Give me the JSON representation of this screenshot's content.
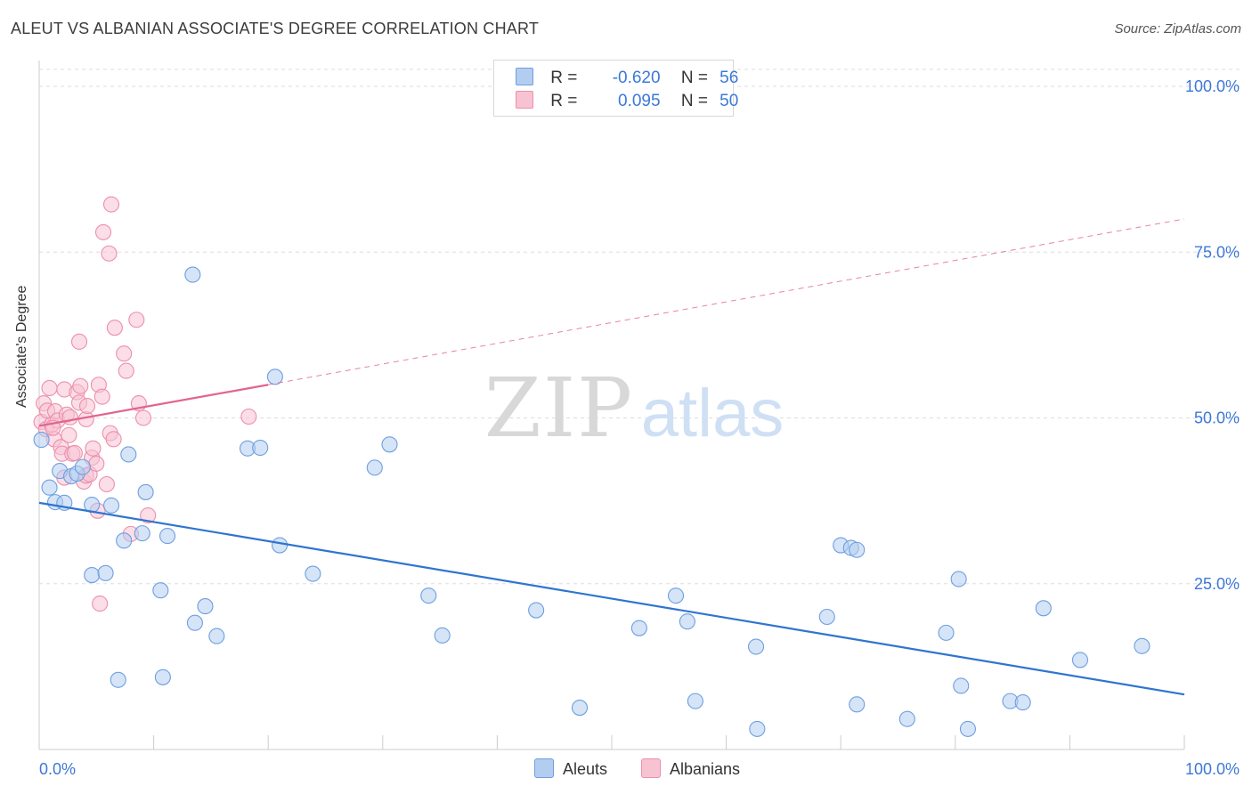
{
  "title": "ALEUT VS ALBANIAN ASSOCIATE'S DEGREE CORRELATION CHART",
  "source": "Source: ZipAtlas.com",
  "watermark": {
    "zip": "ZIP",
    "atlas": "atlas"
  },
  "legend": {
    "rows": [
      {
        "r_label": "R =",
        "r_value": "-0.620",
        "n_label": "N =",
        "n_value": "56"
      },
      {
        "r_label": "R =",
        "r_value": "0.095",
        "n_label": "N =",
        "n_value": "50"
      }
    ]
  },
  "bottom_legend": {
    "aleuts": "Aleuts",
    "albanians": "Albanians"
  },
  "colors": {
    "aleut_fill": "#b3cdf0",
    "aleut_stroke": "#6e9fe0",
    "aleut_line": "#2f74d0",
    "albanian_fill": "#f7c3d3",
    "albanian_stroke": "#ec8fac",
    "albanian_line": "#e2648d",
    "tick_label": "#3c78d8",
    "grid": "#dddddd"
  },
  "chart_data": {
    "type": "scatter",
    "title": "ALEUT VS ALBANIAN ASSOCIATE'S DEGREE CORRELATION CHART",
    "xlabel": "",
    "ylabel": "Associate's Degree",
    "xlim": [
      0,
      100
    ],
    "ylim": [
      0,
      100
    ],
    "x_tick_labels": [
      "0.0%",
      "100.0%"
    ],
    "y_ticks": [
      25,
      50,
      75,
      100
    ],
    "y_tick_labels": [
      "25.0%",
      "50.0%",
      "75.0%",
      "100.0%"
    ],
    "series": [
      {
        "name": "Aleuts",
        "R": -0.62,
        "N": 56,
        "trend": {
          "x0": 0,
          "y0": 37.2,
          "x1": 100,
          "y1": 8.3
        },
        "points": [
          [
            0.2,
            46.7
          ],
          [
            0.9,
            39.5
          ],
          [
            1.4,
            37.3
          ],
          [
            1.8,
            42.0
          ],
          [
            2.2,
            37.2
          ],
          [
            2.8,
            41.2
          ],
          [
            3.3,
            41.6
          ],
          [
            3.8,
            42.6
          ],
          [
            4.6,
            36.9
          ],
          [
            4.6,
            26.3
          ],
          [
            5.8,
            26.6
          ],
          [
            6.3,
            36.8
          ],
          [
            6.9,
            10.5
          ],
          [
            7.4,
            31.5
          ],
          [
            7.8,
            44.5
          ],
          [
            9.0,
            32.6
          ],
          [
            9.3,
            38.8
          ],
          [
            10.6,
            24.0
          ],
          [
            10.8,
            10.9
          ],
          [
            11.2,
            32.2
          ],
          [
            13.4,
            71.6
          ],
          [
            13.6,
            19.1
          ],
          [
            14.5,
            21.6
          ],
          [
            15.5,
            17.1
          ],
          [
            18.2,
            45.4
          ],
          [
            19.3,
            45.5
          ],
          [
            20.6,
            56.2
          ],
          [
            21.0,
            30.8
          ],
          [
            23.9,
            26.5
          ],
          [
            29.3,
            42.5
          ],
          [
            30.6,
            46.0
          ],
          [
            34.0,
            23.2
          ],
          [
            35.2,
            17.2
          ],
          [
            43.4,
            21.0
          ],
          [
            47.2,
            6.3
          ],
          [
            52.4,
            18.3
          ],
          [
            55.6,
            23.2
          ],
          [
            56.6,
            19.3
          ],
          [
            57.3,
            7.3
          ],
          [
            62.6,
            15.5
          ],
          [
            62.7,
            3.1
          ],
          [
            68.8,
            20.0
          ],
          [
            70.0,
            30.8
          ],
          [
            70.9,
            30.4
          ],
          [
            71.4,
            30.1
          ],
          [
            71.4,
            6.8
          ],
          [
            75.8,
            4.6
          ],
          [
            79.2,
            17.6
          ],
          [
            80.3,
            25.7
          ],
          [
            80.5,
            9.6
          ],
          [
            81.1,
            3.1
          ],
          [
            84.8,
            7.3
          ],
          [
            85.9,
            7.1
          ],
          [
            87.7,
            21.3
          ],
          [
            90.9,
            13.5
          ],
          [
            96.3,
            15.6
          ]
        ]
      },
      {
        "name": "Albanians",
        "R": 0.095,
        "N": 50,
        "trend": {
          "x0": 0,
          "y0": 48.8,
          "x1": 20.0,
          "y1": 55.0
        },
        "trend_dashed": {
          "x0": 20.0,
          "y0": 55.0,
          "x1": 100,
          "y1": 80.0
        },
        "points": [
          [
            0.2,
            49.4
          ],
          [
            0.4,
            52.2
          ],
          [
            0.6,
            48.3
          ],
          [
            0.7,
            51.1
          ],
          [
            0.9,
            54.5
          ],
          [
            1.1,
            49.0
          ],
          [
            1.3,
            46.8
          ],
          [
            1.4,
            51.0
          ],
          [
            1.6,
            49.6
          ],
          [
            1.9,
            45.6
          ],
          [
            2.0,
            44.6
          ],
          [
            2.2,
            41.0
          ],
          [
            2.2,
            54.3
          ],
          [
            2.4,
            50.5
          ],
          [
            2.6,
            47.4
          ],
          [
            2.9,
            44.6
          ],
          [
            3.1,
            44.7
          ],
          [
            3.3,
            53.9
          ],
          [
            3.5,
            61.5
          ],
          [
            3.5,
            52.3
          ],
          [
            3.6,
            54.8
          ],
          [
            3.9,
            40.4
          ],
          [
            4.1,
            41.3
          ],
          [
            4.1,
            49.8
          ],
          [
            4.2,
            51.8
          ],
          [
            4.4,
            41.5
          ],
          [
            4.6,
            44.0
          ],
          [
            4.7,
            45.4
          ],
          [
            5.0,
            43.1
          ],
          [
            5.1,
            36.0
          ],
          [
            5.2,
            55.0
          ],
          [
            5.3,
            22.0
          ],
          [
            5.5,
            53.2
          ],
          [
            5.6,
            78.0
          ],
          [
            5.9,
            40.0
          ],
          [
            6.1,
            74.8
          ],
          [
            6.2,
            47.7
          ],
          [
            6.3,
            82.2
          ],
          [
            6.5,
            46.8
          ],
          [
            6.6,
            63.6
          ],
          [
            7.4,
            59.7
          ],
          [
            7.6,
            57.1
          ],
          [
            8.0,
            32.5
          ],
          [
            8.5,
            64.8
          ],
          [
            8.7,
            52.2
          ],
          [
            9.1,
            50.0
          ],
          [
            9.5,
            35.3
          ],
          [
            18.3,
            50.2
          ],
          [
            1.2,
            48.5
          ],
          [
            2.7,
            50.1
          ]
        ]
      }
    ]
  }
}
